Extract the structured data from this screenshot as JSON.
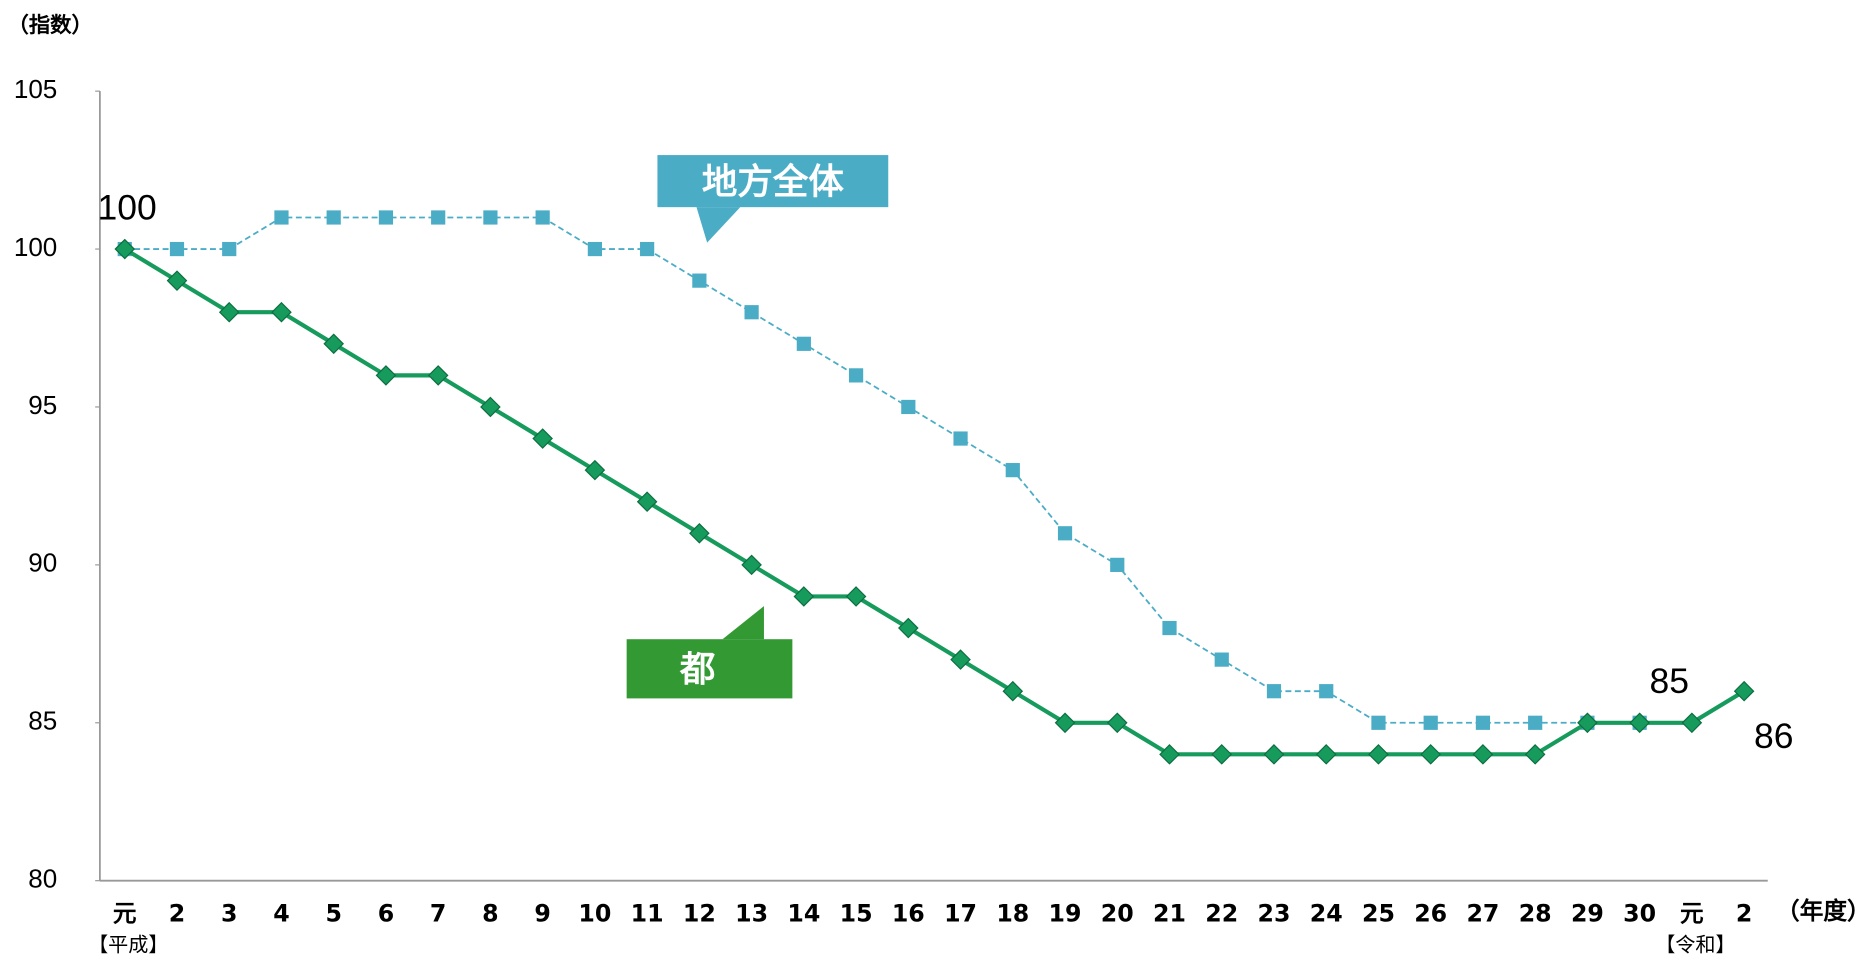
{
  "chart_data": {
    "type": "line",
    "y_axis_label": "（指数）",
    "x_axis_label": "（年度）",
    "categories": [
      "元",
      "2",
      "3",
      "4",
      "5",
      "6",
      "7",
      "8",
      "9",
      "10",
      "11",
      "12",
      "13",
      "14",
      "15",
      "16",
      "17",
      "18",
      "19",
      "20",
      "21",
      "22",
      "23",
      "24",
      "25",
      "26",
      "27",
      "28",
      "29",
      "30",
      "元",
      "2"
    ],
    "category_notes": [
      "【平成】",
      null,
      null,
      null,
      null,
      null,
      null,
      null,
      null,
      null,
      null,
      null,
      null,
      null,
      null,
      null,
      null,
      null,
      null,
      null,
      null,
      null,
      null,
      null,
      null,
      null,
      null,
      null,
      null,
      null,
      "【令和】",
      null
    ],
    "series": [
      {
        "name": "都",
        "color": "#169b5c",
        "callout_color": "#339933",
        "marker": "diamond",
        "dashed": false,
        "values": [
          100,
          99,
          98,
          98,
          97,
          96,
          96,
          95,
          94,
          93,
          92,
          91,
          90,
          89,
          89,
          88,
          87,
          86,
          85,
          85,
          84,
          84,
          84,
          84,
          84,
          84,
          84,
          84,
          85,
          85,
          85,
          86
        ],
        "labeled_points": [
          0,
          29,
          31
        ]
      },
      {
        "name": "地方全体",
        "color": "#4bacc6",
        "callout_color": "#4bacc6",
        "marker": "square",
        "dashed": true,
        "values": [
          100,
          100,
          100,
          101,
          101,
          101,
          101,
          101,
          101,
          100,
          100,
          99,
          98,
          97,
          96,
          95,
          94,
          93,
          91,
          90,
          88,
          87,
          86,
          86,
          85,
          85,
          85,
          85,
          85,
          85,
          null,
          null
        ]
      }
    ],
    "ylim": [
      80,
      105
    ],
    "yticks": [
      80,
      85,
      90,
      95,
      100,
      105
    ],
    "grid": false
  }
}
